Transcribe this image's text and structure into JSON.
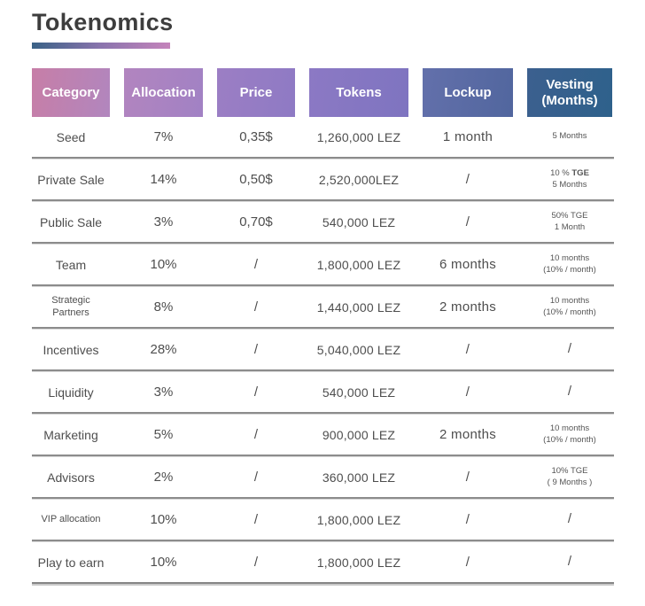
{
  "page": {
    "title": "Tokenomics"
  },
  "accent": {
    "underline_gradient_left": "#3a6286",
    "underline_gradient_right": "#c584bb",
    "separator_color": "#8c8c8c",
    "header_text_color": "#ffffff",
    "body_text_color": "#4e4e4e"
  },
  "table": {
    "headers": [
      {
        "label": "Category",
        "from": "#c77ea7",
        "to": "#b186be"
      },
      {
        "label": "Allocation",
        "from": "#b285bf",
        "to": "#a181c4"
      },
      {
        "label": "Price",
        "from": "#9c7ec4",
        "to": "#8e7ac4"
      },
      {
        "label": "Tokens",
        "from": "#8c79c4",
        "to": "#7e74c0"
      },
      {
        "label": "Lockup",
        "from": "#6370ab",
        "to": "#51669e"
      },
      {
        "label": "Vesting (Months)",
        "from": "#3c608f",
        "to": "#2e618b"
      }
    ],
    "rows": [
      {
        "category": "Seed",
        "allocation": "7%",
        "price": "0,35$",
        "tokens": "1,260,000 LEZ",
        "lockup": "1 month",
        "vesting": [
          "5 Months"
        ]
      },
      {
        "category": "Private Sale",
        "allocation": "14%",
        "price": "0,50$",
        "tokens": "2,520,000LEZ",
        "lockup": "/",
        "vesting": [
          "10 % TGE",
          "5 Months"
        ],
        "vesting_bold": "TGE"
      },
      {
        "category": "Public Sale",
        "allocation": "3%",
        "price": "0,70$",
        "tokens": "540,000 LEZ",
        "lockup": "/",
        "vesting": [
          "50% TGE",
          "1 Month"
        ]
      },
      {
        "category": "Team",
        "allocation": "10%",
        "price": "/",
        "tokens": "1,800,000 LEZ",
        "lockup": "6 months",
        "vesting": [
          "10 months",
          "(10% / month)"
        ]
      },
      {
        "category": "Strategic Partners",
        "allocation": "8%",
        "price": "/",
        "tokens": "1,440,000 LEZ",
        "lockup": "2 months",
        "vesting": [
          "10 months",
          "(10% / month)"
        ]
      },
      {
        "category": "Incentives",
        "allocation": "28%",
        "price": "/",
        "tokens": "5,040,000 LEZ",
        "lockup": "/",
        "vesting": [
          "/"
        ]
      },
      {
        "category": "Liquidity",
        "allocation": "3%",
        "price": "/",
        "tokens": "540,000 LEZ",
        "lockup": "/",
        "vesting": [
          "/"
        ]
      },
      {
        "category": "Marketing",
        "allocation": "5%",
        "price": "/",
        "tokens": "900,000 LEZ",
        "lockup": "2 months",
        "vesting": [
          "10 months",
          "(10% / month)"
        ]
      },
      {
        "category": "Advisors",
        "allocation": "2%",
        "price": "/",
        "tokens": "360,000 LEZ",
        "lockup": "/",
        "vesting": [
          "10% TGE",
          "( 9 Months )"
        ]
      },
      {
        "category": "VIP allocation",
        "allocation": "10%",
        "price": "/",
        "tokens": "1,800,000 LEZ",
        "lockup": "/",
        "vesting": [
          "/"
        ]
      },
      {
        "category": "Play to earn",
        "allocation": "10%",
        "price": "/",
        "tokens": "1,800,000 LEZ",
        "lockup": "/",
        "vesting": [
          "/"
        ]
      }
    ]
  }
}
